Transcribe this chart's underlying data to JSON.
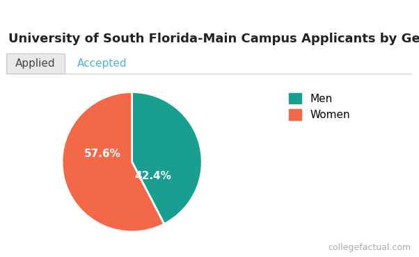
{
  "title": "University of South Florida-Main Campus Applicants by Gender",
  "tab_applied": "Applied",
  "tab_accepted": "Accepted",
  "slices": [
    42.4,
    57.6
  ],
  "labels": [
    "Men",
    "Women"
  ],
  "colors": [
    "#1a9e8f",
    "#f26849"
  ],
  "pct_labels": [
    "42.4%",
    "57.6%"
  ],
  "legend_labels": [
    "Men",
    "Women"
  ],
  "watermark": "collegefactual.com",
  "header_color": "#4db3d4",
  "background_color": "#ffffff",
  "title_fontsize": 13,
  "tab_fontsize": 11,
  "pct_fontsize": 11,
  "legend_fontsize": 11,
  "watermark_fontsize": 9,
  "startangle": 90
}
